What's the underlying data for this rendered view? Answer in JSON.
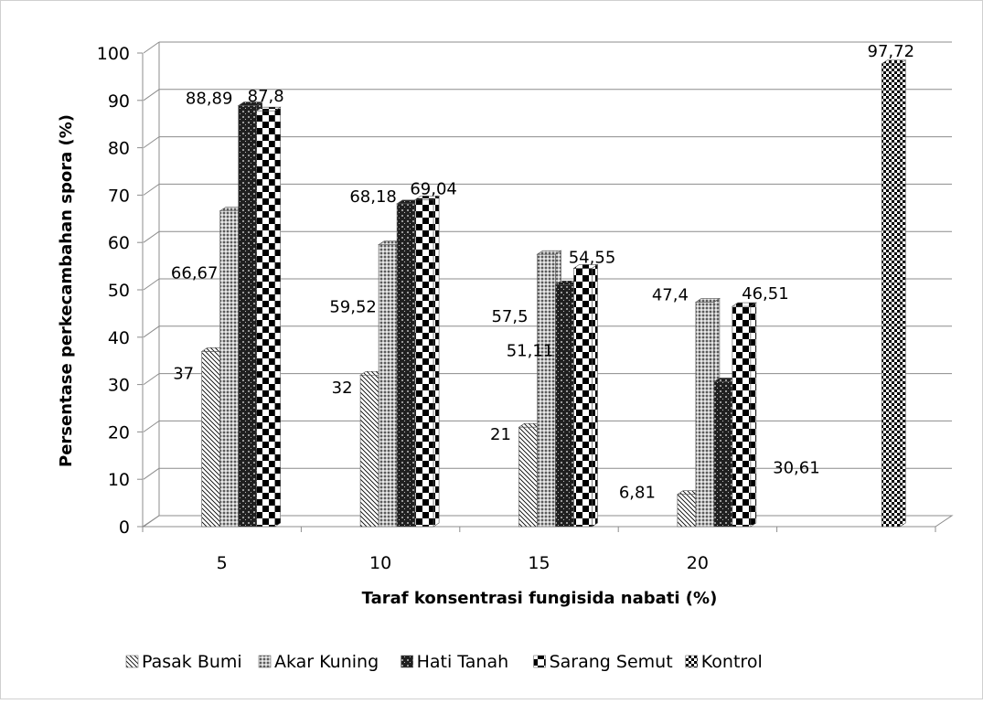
{
  "chart_data": {
    "type": "bar",
    "xlabel": "Taraf konsentrasi fungisida nabati (%)",
    "ylabel": "Persentase perkecambahan spora (%)",
    "ylim": [
      0,
      100
    ],
    "yticks": [
      0,
      10,
      20,
      30,
      40,
      50,
      60,
      70,
      80,
      90,
      100
    ],
    "categories": [
      "5",
      "10",
      "15",
      "20",
      ""
    ],
    "grid": "horizontal",
    "legend_position": "bottom",
    "series": [
      {
        "name": "Pasak Bumi",
        "values": [
          37,
          32,
          21,
          6.81,
          null
        ],
        "labels": [
          "37",
          "32",
          "21",
          "6,81",
          ""
        ]
      },
      {
        "name": "Akar Kuning",
        "values": [
          66.67,
          59.52,
          57.5,
          47.4,
          null
        ],
        "labels": [
          "66,67",
          "59,52",
          "57,5",
          "47,4",
          ""
        ]
      },
      {
        "name": "Hati Tanah",
        "values": [
          88.89,
          68.18,
          51.11,
          30.61,
          null
        ],
        "labels": [
          "88,89",
          "68,18",
          "51,11",
          "30,61",
          ""
        ]
      },
      {
        "name": "Sarang Semut",
        "values": [
          87.8,
          69.04,
          54.55,
          46.51,
          null
        ],
        "labels": [
          "87,8",
          "69,04",
          "54,55",
          "46,51",
          ""
        ]
      },
      {
        "name": "Kontrol",
        "values": [
          null,
          null,
          null,
          null,
          97.72
        ],
        "labels": [
          "",
          "",
          "",
          "",
          "97,72"
        ]
      }
    ]
  }
}
